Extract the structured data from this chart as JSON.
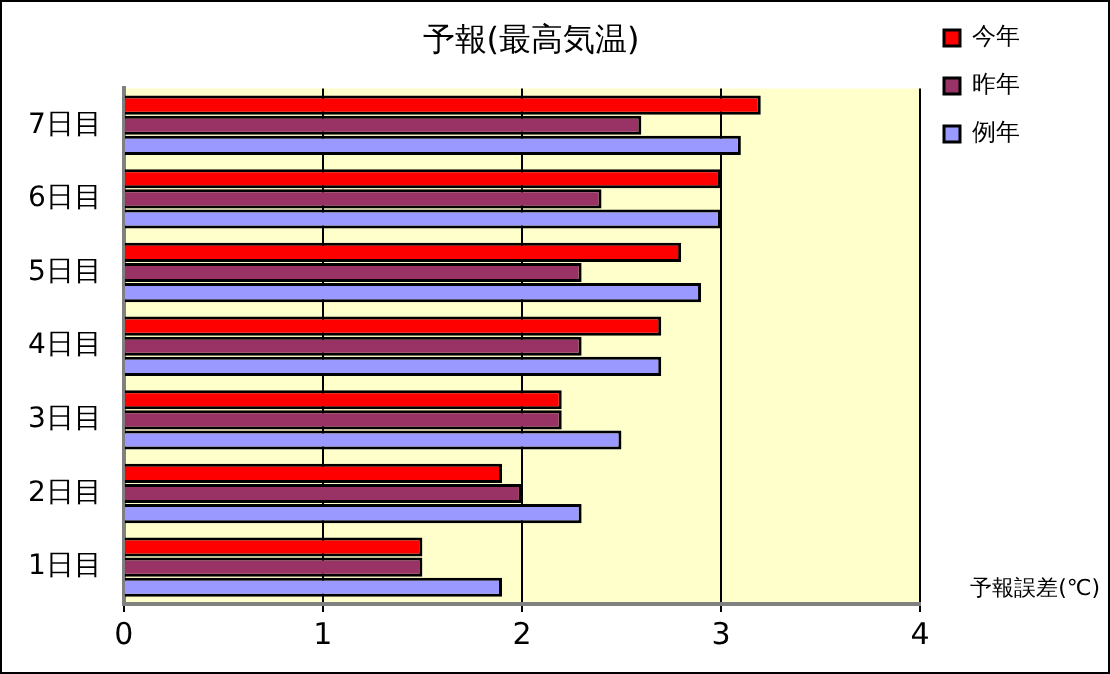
{
  "chart_data": {
    "type": "bar",
    "orientation": "horizontal",
    "title": "予報(最高気温)",
    "xlabel": "予報誤差(℃)",
    "categories": [
      "7日目",
      "6日目",
      "5日目",
      "4日目",
      "3日目",
      "2日目",
      "1日目"
    ],
    "series": [
      {
        "name": "今年",
        "color": "#ff0000",
        "values": [
          3.2,
          3.0,
          2.8,
          2.7,
          2.2,
          1.9,
          1.5
        ]
      },
      {
        "name": "昨年",
        "color": "#993366",
        "values": [
          2.6,
          2.4,
          2.3,
          2.3,
          2.2,
          2.0,
          1.5
        ]
      },
      {
        "name": "例年",
        "color": "#9999ff",
        "values": [
          3.1,
          3.0,
          2.9,
          2.7,
          2.5,
          2.3,
          1.9
        ]
      }
    ],
    "xlim": [
      0,
      4
    ],
    "xticks": [
      0,
      1,
      2,
      3,
      4
    ],
    "grid": "x",
    "legend": "top right"
  }
}
